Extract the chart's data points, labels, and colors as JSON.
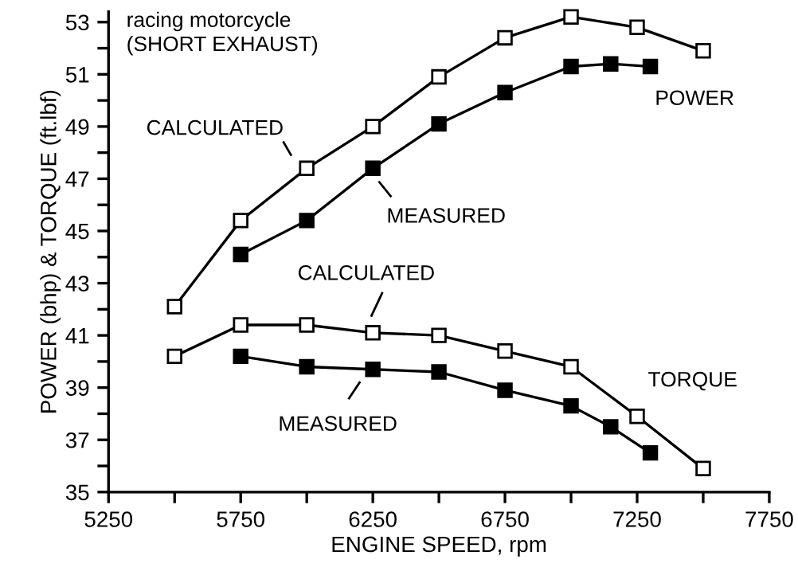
{
  "chart_data": {
    "type": "line",
    "title": "racing motorcycle\n(SHORT EXHAUST)",
    "xlabel": "ENGINE SPEED, rpm",
    "ylabel": "POWER (bhp) & TORQUE (ft.lbf)",
    "series": [
      {
        "x": [
          5500,
          5750,
          6000,
          6250,
          6500,
          6750,
          7000,
          7250,
          7500
        ],
        "values": [
          42.1,
          45.4,
          47.4,
          49.0,
          50.9,
          52.4,
          53.2,
          52.8,
          51.9
        ],
        "color": "#000000"
      },
      {
        "x": [
          5750,
          6000,
          6250,
          6500,
          6750,
          7000,
          7150,
          7300
        ],
        "values": [
          44.1,
          45.4,
          47.4,
          49.1,
          50.3,
          51.3,
          51.4,
          51.3
        ],
        "color": "#000000"
      },
      {
        "x": [
          5500,
          5750,
          6000,
          6250,
          6500,
          6750,
          7000,
          7250,
          7500
        ],
        "values": [
          40.2,
          41.4,
          41.4,
          41.1,
          41.0,
          40.4,
          39.8,
          37.9,
          35.9
        ],
        "color": "#000000"
      },
      {
        "x": [
          5750,
          6000,
          6250,
          6500,
          6750,
          7000,
          7150,
          7300
        ],
        "values": [
          40.2,
          39.8,
          39.7,
          39.6,
          38.9,
          38.3,
          37.5,
          36.5
        ],
        "color": "#000000"
      }
    ],
    "annotations": [
      "CALCULATED",
      "MEASURED",
      "POWER",
      "CALCULATED",
      "MEASURED",
      "TORQUE"
    ],
    "marker": "square",
    "line_style": "solid",
    "grid": false,
    "legend": false,
    "xlim": [
      5250,
      7750
    ],
    "ylim": [
      35,
      53.4
    ],
    "xticks": [
      5250,
      {
        "value": 5500,
        "label": null
      },
      5750,
      {
        "value": 6000,
        "label": null
      },
      6250,
      {
        "value": 6500,
        "label": null
      },
      6750,
      {
        "value": 7000,
        "label": null
      },
      7250,
      {
        "value": 7500,
        "label": null
      },
      7750
    ],
    "yticks": [
      35,
      {
        "value": 36,
        "label": null
      },
      37,
      {
        "value": 38,
        "label": null
      },
      39,
      {
        "value": 40,
        "label": null
      },
      41,
      {
        "value": 42,
        "label": null
      },
      43,
      {
        "value": 44,
        "label": null
      },
      45,
      {
        "value": 46,
        "label": null
      },
      47,
      {
        "value": 48,
        "label": null
      },
      49,
      {
        "value": 50,
        "label": null
      },
      51,
      {
        "value": 52,
        "label": null
      },
      53
    ]
  }
}
